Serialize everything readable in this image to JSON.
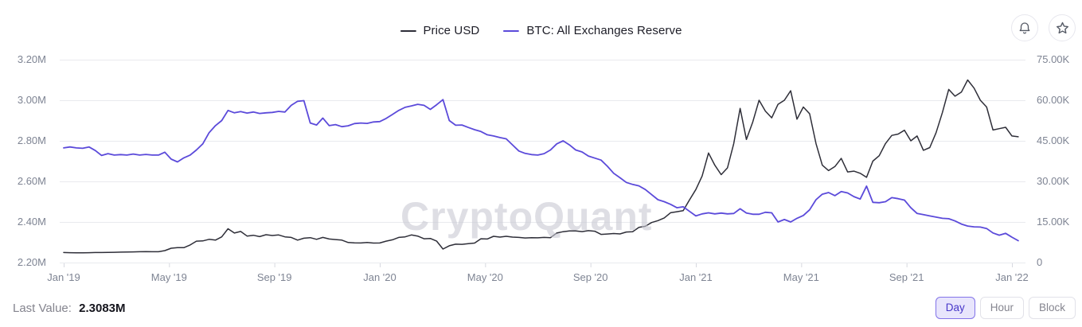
{
  "header": {
    "legend": [
      {
        "label": "Price USD",
        "color": "#2e2e38"
      },
      {
        "label": "BTC: All Exchanges Reserve",
        "color": "#5b4ada"
      }
    ],
    "icons": [
      {
        "name": "notification-bell"
      },
      {
        "name": "favorite-star"
      }
    ]
  },
  "watermark": "CryptoQuant",
  "footer": {
    "last_value_label": "Last Value:",
    "last_value": "2.3083M",
    "interval_buttons": [
      {
        "label": "Day",
        "selected": true
      },
      {
        "label": "Hour",
        "selected": false
      },
      {
        "label": "Block",
        "selected": false
      }
    ]
  },
  "chart_data": {
    "type": "line",
    "title": "",
    "grid": "horizontal",
    "legend_position": "top-center",
    "x_axis": {
      "tick_labels": [
        "Jan '19",
        "May '19",
        "Sep '19",
        "Jan '20",
        "May '20",
        "Sep '20",
        "Jan '21",
        "May '21",
        "Sep '21",
        "Jan '22"
      ],
      "start_year": 2019.0,
      "end_year": 2022.0,
      "tick_interval_months": 4
    },
    "y_left": {
      "tick_labels": [
        "3.20M",
        "3.00M",
        "2.80M",
        "2.60M",
        "2.40M",
        "2.20M"
      ],
      "min": 2.2,
      "max": 3.2,
      "unit": "M BTC",
      "series_name": "BTC: All Exchanges Reserve"
    },
    "y_right": {
      "tick_labels": [
        "75.00K",
        "60.00K",
        "45.00K",
        "30.00K",
        "15.00K",
        "0"
      ],
      "min": 0,
      "max": 75,
      "unit": "K USD",
      "series_name": "Price USD"
    },
    "series": [
      {
        "name": "Price USD",
        "axis": "right",
        "color": "#2e2e38",
        "stroke_width": 1.5,
        "x_start_year": 2019.0,
        "x_step_years": 0.02,
        "values": [
          3.7,
          3.65,
          3.6,
          3.6,
          3.65,
          3.7,
          3.7,
          3.75,
          3.8,
          3.85,
          3.9,
          3.95,
          4.0,
          4.05,
          4.0,
          4.0,
          4.4,
          5.3,
          5.5,
          5.5,
          6.5,
          7.9,
          8.0,
          8.6,
          8.3,
          9.5,
          12.5,
          10.9,
          11.5,
          9.8,
          10.1,
          9.6,
          10.3,
          10.0,
          10.2,
          9.5,
          9.3,
          8.3,
          9.0,
          9.2,
          8.6,
          9.3,
          8.7,
          8.5,
          8.3,
          7.4,
          7.3,
          7.25,
          7.4,
          7.2,
          7.25,
          7.9,
          8.4,
          9.3,
          9.5,
          10.2,
          9.8,
          8.8,
          8.9,
          7.9,
          5.0,
          6.2,
          6.8,
          6.75,
          7.0,
          7.2,
          8.8,
          8.7,
          9.7,
          9.4,
          9.7,
          9.4,
          9.3,
          9.1,
          9.2,
          9.15,
          9.3,
          9.2,
          10.9,
          11.4,
          11.7,
          11.7,
          11.45,
          11.8,
          11.6,
          10.4,
          10.55,
          10.75,
          10.6,
          11.3,
          11.4,
          13.0,
          13.4,
          14.8,
          15.5,
          16.5,
          18.4,
          18.8,
          19.2,
          23.2,
          27.0,
          32.0,
          40.5,
          36.0,
          32.5,
          35.0,
          44.0,
          57.0,
          45.5,
          52.0,
          60.0,
          56.0,
          53.5,
          58.5,
          60.0,
          63.5,
          53.0,
          57.5,
          55.0,
          44.0,
          36.0,
          34.0,
          35.5,
          38.5,
          33.5,
          33.8,
          33.0,
          31.5,
          37.5,
          39.5,
          44.0,
          47.0,
          47.5,
          48.9,
          45.0,
          46.8,
          41.5,
          42.5,
          48.0,
          55.5,
          64.0,
          61.5,
          63.0,
          67.5,
          64.5,
          60.0,
          57.5,
          49.0,
          49.5,
          50.0,
          46.8,
          46.5
        ]
      },
      {
        "name": "BTC: All Exchanges Reserve",
        "axis": "left",
        "color": "#5b4ada",
        "stroke_width": 1.8,
        "x_start_year": 2019.0,
        "x_step_years": 0.02,
        "values": [
          2.765,
          2.77,
          2.765,
          2.763,
          2.77,
          2.752,
          2.728,
          2.737,
          2.73,
          2.732,
          2.73,
          2.735,
          2.73,
          2.733,
          2.73,
          2.73,
          2.744,
          2.71,
          2.696,
          2.716,
          2.73,
          2.755,
          2.785,
          2.84,
          2.875,
          2.9,
          2.95,
          2.938,
          2.944,
          2.937,
          2.942,
          2.935,
          2.938,
          2.94,
          2.945,
          2.942,
          2.975,
          2.995,
          2.998,
          2.888,
          2.878,
          2.912,
          2.875,
          2.88,
          2.87,
          2.874,
          2.885,
          2.888,
          2.886,
          2.893,
          2.895,
          2.91,
          2.93,
          2.95,
          2.965,
          2.972,
          2.98,
          2.975,
          2.955,
          2.978,
          3.003,
          2.9,
          2.877,
          2.878,
          2.866,
          2.855,
          2.846,
          2.83,
          2.824,
          2.816,
          2.81,
          2.78,
          2.75,
          2.738,
          2.732,
          2.73,
          2.737,
          2.755,
          2.785,
          2.8,
          2.78,
          2.755,
          2.745,
          2.725,
          2.715,
          2.705,
          2.675,
          2.64,
          2.618,
          2.595,
          2.585,
          2.578,
          2.56,
          2.535,
          2.51,
          2.5,
          2.487,
          2.47,
          2.475,
          2.452,
          2.43,
          2.44,
          2.445,
          2.44,
          2.444,
          2.44,
          2.442,
          2.465,
          2.444,
          2.438,
          2.438,
          2.448,
          2.445,
          2.4,
          2.412,
          2.4,
          2.418,
          2.432,
          2.46,
          2.51,
          2.537,
          2.545,
          2.53,
          2.55,
          2.543,
          2.525,
          2.513,
          2.577,
          2.497,
          2.495,
          2.5,
          2.52,
          2.515,
          2.508,
          2.47,
          2.442,
          2.436,
          2.43,
          2.424,
          2.418,
          2.416,
          2.405,
          2.39,
          2.38,
          2.376,
          2.375,
          2.368,
          2.346,
          2.335,
          2.344,
          2.325,
          2.308
        ]
      }
    ]
  }
}
